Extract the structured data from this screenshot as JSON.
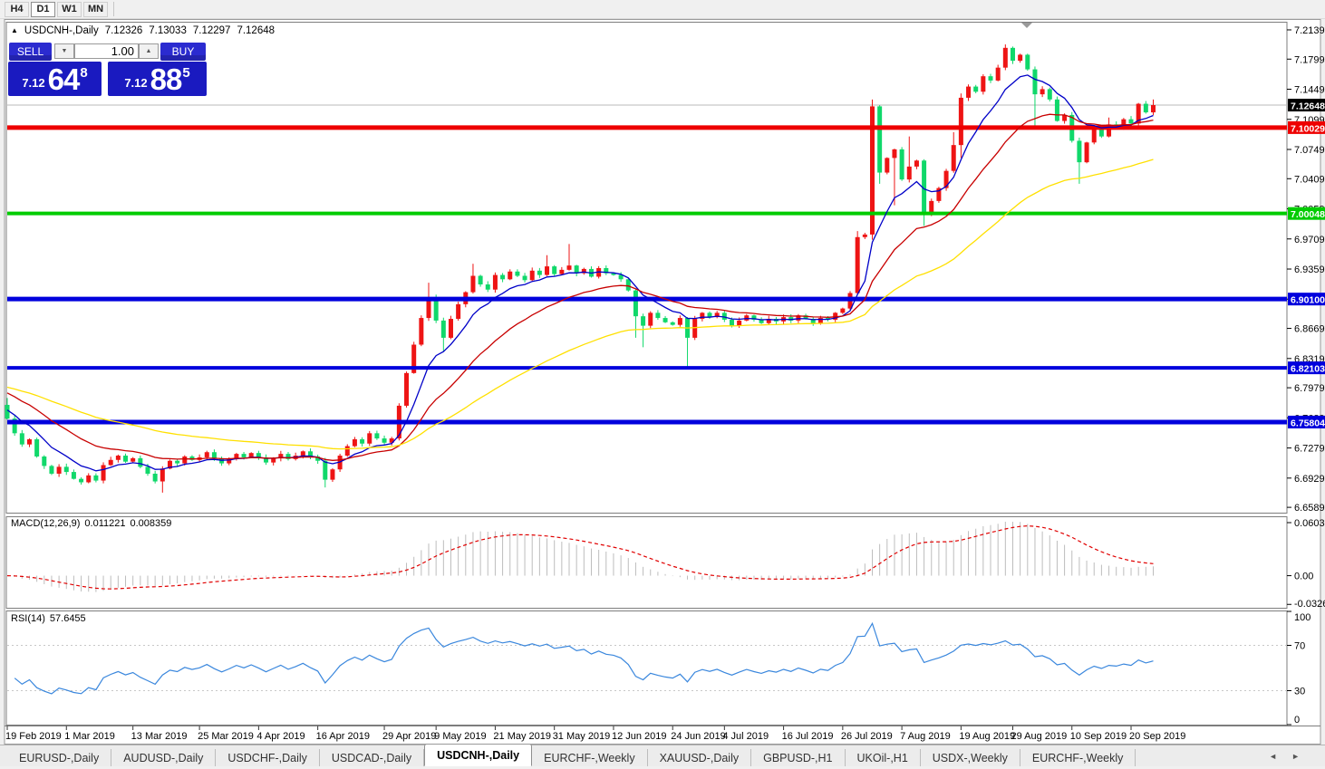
{
  "toolbar": {
    "periods": [
      "H4",
      "D1",
      "W1",
      "MN"
    ],
    "active": "D1"
  },
  "title": {
    "collapse_icon": "▲",
    "symbol": "USDCNH-,Daily",
    "open": "7.12326",
    "high": "7.13033",
    "low": "7.12297",
    "close": "7.12648"
  },
  "trade_panel": {
    "sell_label": "SELL",
    "buy_label": "BUY",
    "volume": "1.00",
    "spin_down_icon": "▼",
    "spin_up_icon": "▲",
    "sell_small": "7.12",
    "sell_big": "64",
    "sell_sup": "8",
    "buy_small": "7.12",
    "buy_big": "88",
    "buy_sup": "5"
  },
  "price_axis": {
    "ticks": [
      {
        "v": 7.2139,
        "label": "7.21390"
      },
      {
        "v": 7.1799,
        "label": "7.17990"
      },
      {
        "v": 7.1449,
        "label": "7.14490"
      },
      {
        "v": 7.1099,
        "label": "7.10990"
      },
      {
        "v": 7.0749,
        "label": "7.07490"
      },
      {
        "v": 7.0409,
        "label": "7.04090"
      },
      {
        "v": 7.0059,
        "label": "7.00590"
      },
      {
        "v": 6.9709,
        "label": "6.97090"
      },
      {
        "v": 6.9359,
        "label": "6.93590"
      },
      {
        "v": 6.9009,
        "label": "6.90090"
      },
      {
        "v": 6.8669,
        "label": "6.86690"
      },
      {
        "v": 6.8319,
        "label": "6.83190"
      },
      {
        "v": 6.7979,
        "label": "6.79790"
      },
      {
        "v": 6.7629,
        "label": "6.76290"
      },
      {
        "v": 6.7279,
        "label": "6.72790"
      },
      {
        "v": 6.6929,
        "label": "6.69290"
      },
      {
        "v": 6.6589,
        "label": "6.65890"
      }
    ],
    "current_price": {
      "value": 7.12648,
      "label": "7.12648",
      "box_color": "#000000",
      "line_color": "#b8b8b8"
    }
  },
  "levels": [
    {
      "price": 7.10029,
      "label": "7.10029",
      "color": "#ee0000",
      "width": 5
    },
    {
      "price": 7.00048,
      "label": "7.00048",
      "color": "#00cc00",
      "width": 4
    },
    {
      "price": 6.901,
      "label": "6.90100",
      "color": "#0000dd",
      "width": 5
    },
    {
      "price": 6.82103,
      "label": "6.82103",
      "color": "#0000dd",
      "width": 4
    },
    {
      "price": 6.75804,
      "label": "6.75804",
      "color": "#0000dd",
      "width": 5
    }
  ],
  "chart_data": {
    "type": "candlestick",
    "symbol": "USDCNH-",
    "timeframe": "Daily",
    "up_color": "#ee1414",
    "down_color": "#10d86a",
    "y_axis": {
      "top": 7.2223,
      "bottom": 6.6527
    },
    "x_labels": [
      {
        "label": "19 Feb 2019",
        "bar": 0
      },
      {
        "label": "1 Mar 2019",
        "bar": 8
      },
      {
        "label": "13 Mar 2019",
        "bar": 17
      },
      {
        "label": "25 Mar 2019",
        "bar": 26
      },
      {
        "label": "4 Apr 2019",
        "bar": 34
      },
      {
        "label": "16 Apr 2019",
        "bar": 42
      },
      {
        "label": "29 Apr 2019",
        "bar": 51
      },
      {
        "label": "9 May 2019",
        "bar": 58
      },
      {
        "label": "21 May 2019",
        "bar": 66
      },
      {
        "label": "31 May 2019",
        "bar": 74
      },
      {
        "label": "12 Jun 2019",
        "bar": 82
      },
      {
        "label": "24 Jun 2019",
        "bar": 90
      },
      {
        "label": "4 Jul 2019",
        "bar": 97
      },
      {
        "label": "16 Jul 2019",
        "bar": 105
      },
      {
        "label": "26 Jul 2019",
        "bar": 113
      },
      {
        "label": "7 Aug 2019",
        "bar": 121
      },
      {
        "label": "19 Aug 2019",
        "bar": 129
      },
      {
        "label": "29 Aug 2019",
        "bar": 136
      },
      {
        "label": "10 Sep 2019",
        "bar": 144
      },
      {
        "label": "20 Sep 2019",
        "bar": 152
      }
    ],
    "first_open": 6.778,
    "closes": [
      6.762,
      6.745,
      6.732,
      6.738,
      6.718,
      6.707,
      6.698,
      6.706,
      6.7,
      6.692,
      6.688,
      6.696,
      6.69,
      6.708,
      6.714,
      6.719,
      6.712,
      6.716,
      6.706,
      6.698,
      6.689,
      6.704,
      6.713,
      6.71,
      6.718,
      6.714,
      6.717,
      6.723,
      6.716,
      6.71,
      6.715,
      6.721,
      6.717,
      6.722,
      6.717,
      6.711,
      6.716,
      6.721,
      6.715,
      6.719,
      6.724,
      6.718,
      6.713,
      6.691,
      6.703,
      6.719,
      6.73,
      6.738,
      6.733,
      6.745,
      6.739,
      6.734,
      6.739,
      6.777,
      6.815,
      6.848,
      6.879,
      6.903,
      6.876,
      6.856,
      6.878,
      6.895,
      6.909,
      6.928,
      6.918,
      6.912,
      6.929,
      6.924,
      6.933,
      6.928,
      6.923,
      6.934,
      6.929,
      6.939,
      6.93,
      6.935,
      6.94,
      6.931,
      6.936,
      6.927,
      6.937,
      6.931,
      6.929,
      6.924,
      6.911,
      6.881,
      6.87,
      6.885,
      6.879,
      6.874,
      6.871,
      6.879,
      6.856,
      6.878,
      6.885,
      6.88,
      6.885,
      6.877,
      6.87,
      6.876,
      6.882,
      6.877,
      6.873,
      6.878,
      6.875,
      6.88,
      6.876,
      6.882,
      6.878,
      6.873,
      6.879,
      6.877,
      6.885,
      6.89,
      6.908,
      6.973,
      6.976,
      7.125,
      7.048,
      7.065,
      7.075,
      7.04,
      7.055,
      7.062,
      6.999,
      7.015,
      7.03,
      7.05,
      7.08,
      7.135,
      7.148,
      7.142,
      7.16,
      7.155,
      7.17,
      7.193,
      7.178,
      7.185,
      7.168,
      7.139,
      7.145,
      7.133,
      7.108,
      7.115,
      7.085,
      7.06,
      7.083,
      7.1,
      7.09,
      7.104,
      7.101,
      7.11,
      7.105,
      7.128,
      7.118,
      7.12648
    ],
    "overrides": {
      "0": {
        "o": 6.778,
        "h": 6.786
      },
      "21": {
        "l": 6.676
      },
      "43": {
        "l": 6.682
      },
      "57": {
        "h": 6.92
      },
      "59": {
        "l": 6.84
      },
      "63": {
        "h": 6.942
      },
      "73": {
        "h": 6.952
      },
      "76": {
        "h": 6.965
      },
      "85": {
        "l": 6.856
      },
      "86": {
        "l": 6.845
      },
      "92": {
        "l": 6.822
      },
      "115": {
        "h": 6.98
      },
      "117": {
        "h": 7.133,
        "l": 6.97
      },
      "118": {
        "l": 7.035
      },
      "120": {
        "l": 7.01
      },
      "122": {
        "h": 7.09
      },
      "124": {
        "l": 6.986
      },
      "128": {
        "h": 7.095
      },
      "129": {
        "h": 7.14,
        "l": 7.065
      },
      "135": {
        "h": 7.197
      },
      "139": {
        "l": 7.1
      },
      "145": {
        "l": 7.035
      },
      "149": {
        "h": 7.112
      },
      "155": {
        "h": 7.133
      }
    },
    "moving_averages": [
      {
        "name": "fast",
        "period": 8,
        "seed": 6.775,
        "color": "#0000c8"
      },
      {
        "name": "medium",
        "period": 20,
        "seed": 6.795,
        "color": "#c80000"
      },
      {
        "name": "slow",
        "period": 50,
        "seed": 6.8,
        "color": "#ffe000"
      }
    ]
  },
  "macd": {
    "label": "MACD(12,26,9)",
    "value_main": "0.011221",
    "value_signal": "0.008359",
    "axis_labels": [
      {
        "v": 0.060317,
        "label": "0.060317"
      },
      {
        "v": 0.0,
        "label": "0.00"
      },
      {
        "v": -0.032648,
        "label": "-0.032648"
      }
    ],
    "range": {
      "top": 0.0665,
      "bottom": -0.0365
    },
    "hist_color": "#bdbdbd",
    "signal_color": "#e00000"
  },
  "rsi": {
    "label": "RSI(14)",
    "value": "57.6455",
    "axis_labels": [
      {
        "v": 100,
        "label": "100"
      },
      {
        "v": 70,
        "label": "70"
      },
      {
        "v": 30,
        "label": "30"
      },
      {
        "v": 0,
        "label": "0"
      }
    ],
    "guide_levels": [
      70,
      30
    ],
    "color": "#3a87dd",
    "guide_color": "#c8c8c8"
  },
  "tabs": {
    "items": [
      "EURUSD-,Daily",
      "AUDUSD-,Daily",
      "USDCHF-,Daily",
      "USDCAD-,Daily",
      "USDCNH-,Daily",
      "EURCHF-,Weekly",
      "XAUUSD-,Daily",
      "GBPUSD-,H1",
      "UKOil-,H1",
      "USDX-,Weekly",
      "EURCHF-,Weekly"
    ],
    "active_index": 4,
    "scroll_left_icon": "◄",
    "scroll_right_icon": "►"
  }
}
